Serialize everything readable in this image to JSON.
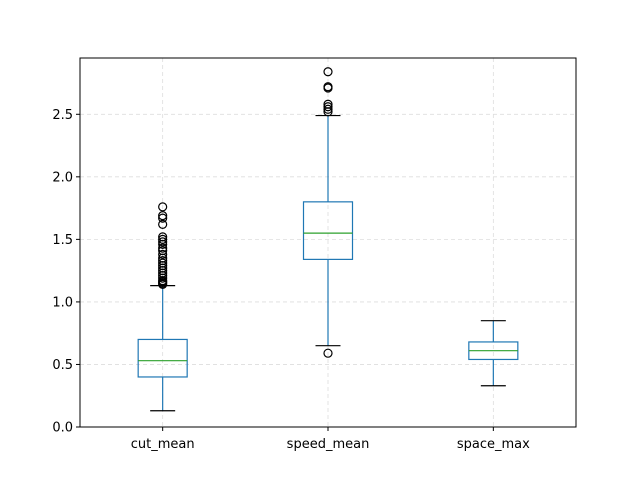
{
  "chart_data": {
    "type": "boxplot",
    "categories": [
      "cut_mean",
      "speed_mean",
      "space_max"
    ],
    "ylim": [
      0.0,
      2.95
    ],
    "yticks": [
      0.0,
      0.5,
      1.0,
      1.5,
      2.0,
      2.5
    ],
    "ytick_labels": [
      "0.0",
      "0.5",
      "1.0",
      "1.5",
      "2.0",
      "2.5"
    ],
    "grid": true,
    "xlabel": "",
    "ylabel": "",
    "boxes": [
      {
        "name": "cut_mean",
        "whisker_low": 0.13,
        "q1": 0.4,
        "median": 0.53,
        "q3": 0.7,
        "whisker_high": 1.13,
        "outliers": [
          1.14,
          1.15,
          1.16,
          1.17,
          1.19,
          1.21,
          1.23,
          1.25,
          1.27,
          1.29,
          1.31,
          1.33,
          1.35,
          1.38,
          1.41,
          1.43,
          1.46,
          1.48,
          1.5,
          1.52,
          1.62,
          1.67,
          1.69,
          1.76
        ]
      },
      {
        "name": "speed_mean",
        "whisker_low": 0.65,
        "q1": 1.34,
        "median": 1.55,
        "q3": 1.8,
        "whisker_high": 2.49,
        "outliers": [
          0.59,
          2.52,
          2.54,
          2.56,
          2.58,
          2.71,
          2.72,
          2.84
        ]
      },
      {
        "name": "space_max",
        "whisker_low": 0.33,
        "q1": 0.54,
        "median": 0.61,
        "q3": 0.68,
        "whisker_high": 0.85,
        "outliers": []
      }
    ],
    "colors": {
      "box": "#1f77b4",
      "median": "#2ca02c",
      "whisker": "#1f77b4",
      "cap": "#000000",
      "outlier": "#000000",
      "grid": "#dddddd"
    }
  }
}
